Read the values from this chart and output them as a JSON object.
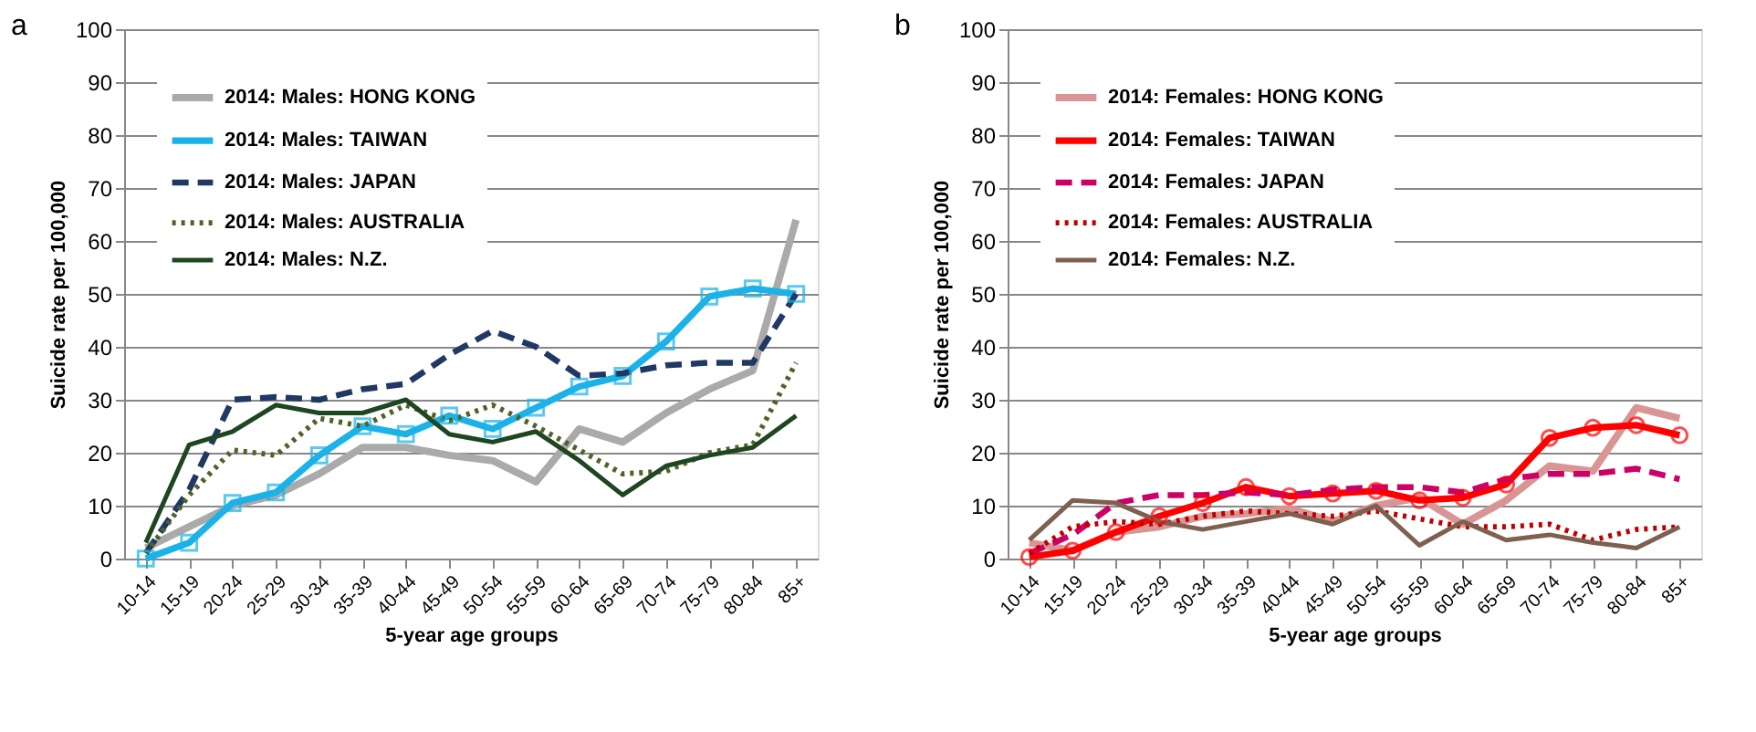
{
  "chart_data": [
    {
      "type": "line",
      "title": "a",
      "categories": [
        "10-14",
        "15-19",
        "20-24",
        "25-29",
        "30-34",
        "35-39",
        "40-44",
        "45-49",
        "50-54",
        "55-59",
        "60-64",
        "65-69",
        "70-74",
        "75-79",
        "80-84",
        "85+"
      ],
      "xlabel": "5-year age groups",
      "ylabel": "Suicide  rate per 100,000",
      "ylim": [
        0,
        100
      ],
      "yticks": [
        0,
        10,
        20,
        30,
        40,
        50,
        60,
        70,
        80,
        90,
        100
      ],
      "grid": "y",
      "legend": "top left",
      "series": [
        {
          "name": "2014: Males: HONG KONG",
          "color": "#aaaaaa",
          "line_style": "solid",
          "marker": "none",
          "values": [
            2,
            6,
            10,
            12,
            16,
            21,
            21,
            19.5,
            18.5,
            14.5,
            24.5,
            22,
            27.5,
            32,
            35.5,
            64
          ]
        },
        {
          "name": "2014: Males: TAIWAN",
          "color": "#1ab2e8",
          "line_style": "solid",
          "marker": "square",
          "values": [
            0,
            3,
            10.5,
            12.5,
            19.5,
            25,
            23.5,
            27,
            24.5,
            28.5,
            32.5,
            34.5,
            41,
            49.5,
            51,
            50
          ]
        },
        {
          "name": "2014: Males: JAPAN",
          "color": "#1f3864",
          "line_style": "dashed",
          "marker": "none",
          "values": [
            1,
            13,
            30,
            30.5,
            30,
            32,
            33,
            38.5,
            43,
            40,
            34.5,
            35,
            36.5,
            37,
            37,
            50
          ]
        },
        {
          "name": "2014: Males: AUSTRALIA",
          "color": "#4f6228",
          "line_style": "dotted",
          "marker": "none",
          "values": [
            1,
            12,
            20.5,
            19.5,
            26.5,
            25,
            29,
            26,
            29,
            25,
            20.5,
            16,
            16.5,
            20,
            21.5,
            37
          ]
        },
        {
          "name": "2014: Males: N.Z.",
          "color": "#1e4620",
          "line_style": "solid",
          "marker": "none",
          "values": [
            3,
            21.5,
            24,
            29,
            27.5,
            27.5,
            30,
            23.5,
            22,
            24,
            18.5,
            12,
            17.5,
            19.5,
            21,
            27
          ]
        }
      ]
    },
    {
      "type": "line",
      "title": "b",
      "categories": [
        "10-14",
        "15-19",
        "20-24",
        "25-29",
        "30-34",
        "35-39",
        "40-44",
        "45-49",
        "50-54",
        "55-59",
        "60-64",
        "65-69",
        "70-74",
        "75-79",
        "80-84",
        "85+"
      ],
      "xlabel": "5-year age groups",
      "ylabel": "Suicide  rate per 100,000",
      "ylim": [
        0,
        100
      ],
      "yticks": [
        0,
        10,
        20,
        30,
        40,
        50,
        60,
        70,
        80,
        90,
        100
      ],
      "grid": "y",
      "legend": "top left",
      "series": [
        {
          "name": "2014: Females: HONG KONG",
          "color": "#d99594",
          "line_style": "solid",
          "marker": "none",
          "values": [
            3,
            1.5,
            5,
            6,
            8,
            8.5,
            9.5,
            7,
            10,
            11.5,
            6.5,
            11,
            17.5,
            16.5,
            28.5,
            26.5
          ]
        },
        {
          "name": "2014: Females: TAIWAN",
          "color": "#ff0000",
          "line_style": "solid",
          "marker": "circle",
          "values": [
            0.3,
            1.5,
            5,
            8,
            10.5,
            13.5,
            11.8,
            12.3,
            12.8,
            11,
            11.5,
            14,
            22.8,
            24.7,
            25.2,
            23.3
          ]
        },
        {
          "name": "2014: Females: JAPAN",
          "color": "#cc0066",
          "line_style": "dashed",
          "marker": "none",
          "values": [
            1,
            4.5,
            10.5,
            12,
            12,
            12.5,
            12,
            13,
            13.5,
            13.5,
            12.5,
            15,
            16,
            16,
            17,
            15
          ]
        },
        {
          "name": "2014: Females: AUSTRALIA",
          "color": "#c00000",
          "line_style": "dotted",
          "marker": "none",
          "values": [
            1,
            6,
            7,
            6.5,
            8,
            9,
            8.5,
            8,
            9,
            7.5,
            6,
            6,
            6.5,
            3.5,
            5.5,
            6
          ]
        },
        {
          "name": "2014: Females: N.Z.",
          "color": "#7f6050",
          "line_style": "solid",
          "marker": "none",
          "values": [
            3.5,
            11,
            10.5,
            7,
            5.5,
            7,
            8.5,
            6.5,
            10,
            2.5,
            7,
            3.5,
            4.5,
            3,
            2,
            6
          ]
        }
      ]
    }
  ]
}
